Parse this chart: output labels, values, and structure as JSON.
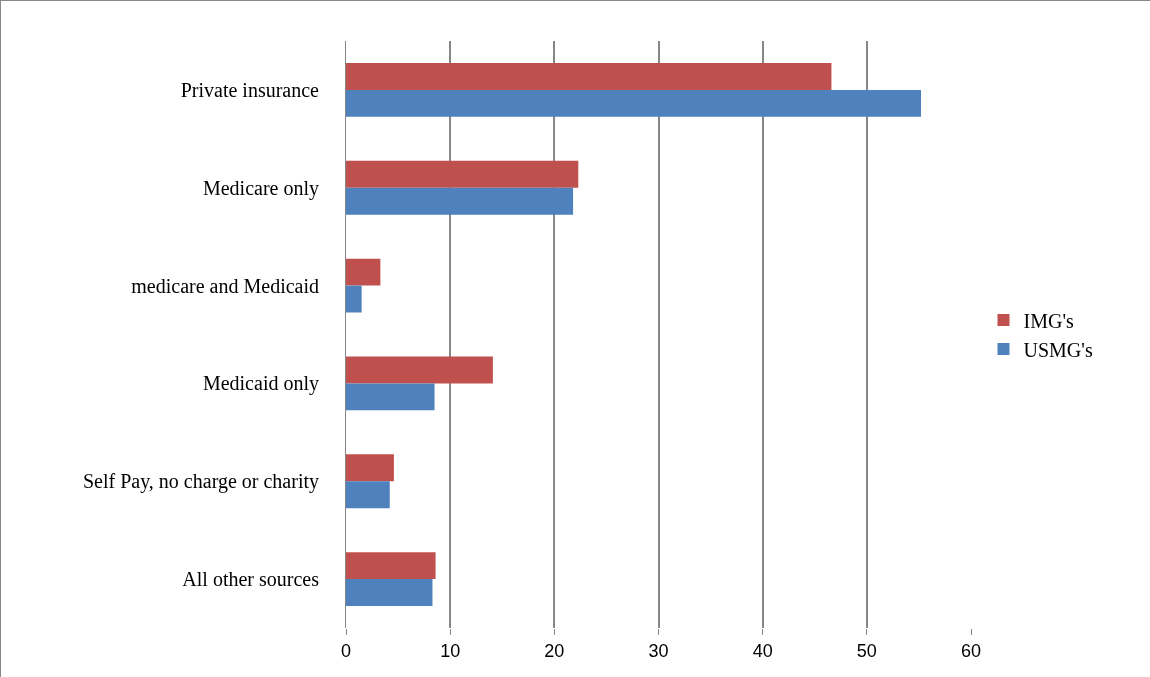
{
  "chart_data": {
    "type": "bar",
    "orientation": "horizontal",
    "categories": [
      "Private insurance",
      "Medicare only",
      "medicare and Medicaid",
      "Medicaid only",
      "Self Pay, no charge or charity",
      "All other sources"
    ],
    "series": [
      {
        "name": "IMG's",
        "color": "#c0504d",
        "values": [
          46.6,
          22.3,
          3.3,
          14.1,
          4.6,
          8.6
        ]
      },
      {
        "name": "USMG's",
        "color": "#4f81bd",
        "values": [
          55.2,
          21.8,
          1.5,
          8.5,
          4.2,
          8.3
        ]
      }
    ],
    "xlim": [
      0,
      60
    ],
    "xticks": [
      0,
      10,
      20,
      30,
      40,
      50,
      60
    ],
    "grid": "x",
    "legend": "right"
  }
}
